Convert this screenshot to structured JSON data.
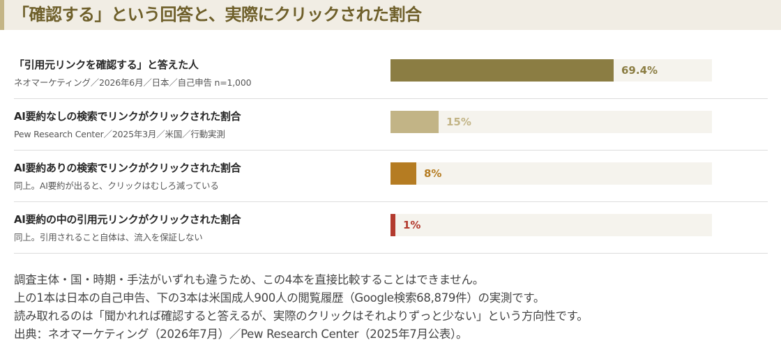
{
  "title": "「確認する」という回答と、実際にクリックされた割合",
  "chart_data": {
    "type": "bar",
    "orientation": "horizontal",
    "xlim": [
      0,
      100
    ],
    "unit": "%",
    "rows": [
      {
        "title": "「引用元リンクを確認する」と答えた人",
        "source": "ネオマーケティング／2026年6月／日本／自己申告 n=1,000",
        "value": 69.4,
        "label": "69.4%",
        "color": "#8b7d43"
      },
      {
        "title": "AI要約なしの検索でリンクがクリックされた割合",
        "source": "Pew Research Center／2025年3月／米国／行動実測",
        "value": 15,
        "label": "15%",
        "color": "#c2b486"
      },
      {
        "title": "AI要約ありの検索でリンクがクリックされた割合",
        "source": "同上。AI要約が出ると、クリックはむしろ減っている",
        "value": 8,
        "label": "8%",
        "color": "#b57c22"
      },
      {
        "title": "AI要約の中の引用元リンクがクリックされた割合",
        "source": "同上。引用されること自体は、流入を保証しない",
        "value": 1,
        "label": "1%",
        "color": "#b33a2e"
      }
    ]
  },
  "notes": [
    "調査主体・国・時期・手法がいずれも違うため、この4本を直接比較することはできません。",
    "上の1本は日本の自己申告、下の3本は米国成人900人の閲覧履歴（Google検索68,879件）の実測です。",
    "読み取れるのは「聞かれれば確認すると答えるが、実際のクリックはそれよりずっと少ない」という方向性です。",
    "出典：ネオマーケティング（2026年7月）／Pew Research Center（2025年7月公表）。"
  ]
}
